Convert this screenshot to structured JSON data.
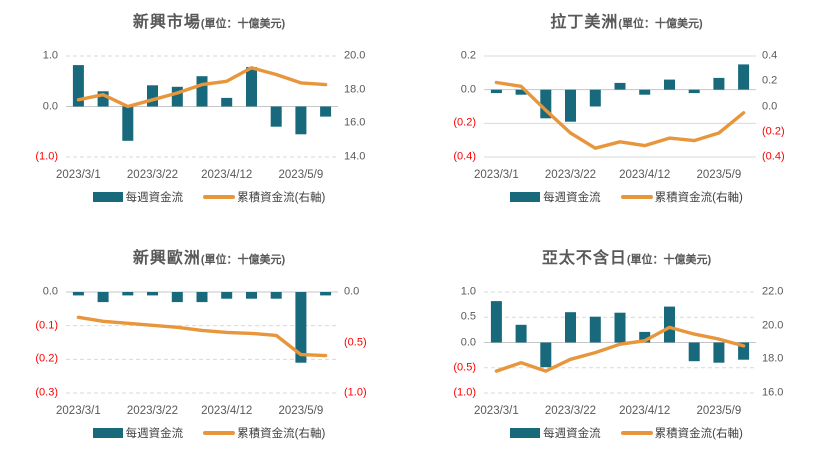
{
  "colors": {
    "bar": "#17697B",
    "line": "#E8963C",
    "grid": "#D9D9D9",
    "zero_line": "#C6C6C6",
    "axis_text": "#595959",
    "negative_text": "#FF0000",
    "title_text": "#595959"
  },
  "legend": {
    "bar_label": "每週資金流",
    "line_label": "累積資金流(右軸)"
  },
  "chart_data": [
    {
      "type": "combo-bar-line",
      "title": "新興市場",
      "unit": "(單位：十億美元)",
      "x_tick_labels": [
        "2023/3/1",
        "2023/3/22",
        "2023/4/12",
        "2023/5/9"
      ],
      "x_tick_positions": [
        0,
        3,
        6,
        9
      ],
      "grid_style": "dashed",
      "left_axis": {
        "max": 1.0,
        "min": -1.0,
        "tick_labels": [
          "1.0",
          "0.0",
          "(1.0)"
        ],
        "tick_values": [
          1.0,
          0.0,
          -1.0
        ]
      },
      "right_axis": {
        "max": 20.0,
        "min": 14.0,
        "tick_labels": [
          "20.0",
          "18.0",
          "16.0",
          "14.0"
        ]
      },
      "series": [
        {
          "name": "每週資金流",
          "type": "bar",
          "axis": "left",
          "values": [
            0.82,
            0.3,
            -0.68,
            0.42,
            0.39,
            0.6,
            0.17,
            0.78,
            -0.4,
            -0.55,
            -0.2
          ]
        },
        {
          "name": "累積資金流(右軸)",
          "type": "line",
          "axis": "right",
          "values": [
            17.4,
            17.7,
            17.0,
            17.4,
            17.8,
            18.3,
            18.5,
            19.3,
            18.9,
            18.4,
            18.3
          ]
        }
      ]
    },
    {
      "type": "combo-bar-line",
      "title": "拉丁美洲",
      "unit": "(單位：十億美元)",
      "x_tick_labels": [
        "2023/3/1",
        "2023/3/22",
        "2023/4/12",
        "2023/5/9"
      ],
      "x_tick_positions": [
        0,
        3,
        6,
        9
      ],
      "grid_style": "solid",
      "left_axis": {
        "max": 0.2,
        "min": -0.4,
        "tick_labels": [
          "0.2",
          "0.0",
          "(0.2)",
          "(0.4)"
        ],
        "tick_values": [
          0.2,
          0.0,
          -0.2,
          -0.4
        ]
      },
      "right_axis": {
        "max": 0.4,
        "min": -0.4,
        "tick_labels": [
          "0.4",
          "0.2",
          "0.0",
          "(0.2)",
          "(0.4)"
        ]
      },
      "series": [
        {
          "name": "每週資金流",
          "type": "bar",
          "axis": "left",
          "values": [
            -0.02,
            -0.03,
            -0.17,
            -0.19,
            -0.1,
            0.04,
            -0.03,
            0.06,
            -0.02,
            0.07,
            0.15
          ]
        },
        {
          "name": "累積資金流(右軸)",
          "type": "line",
          "axis": "right",
          "values": [
            0.19,
            0.16,
            -0.03,
            -0.21,
            -0.33,
            -0.28,
            -0.31,
            -0.25,
            -0.27,
            -0.21,
            -0.05
          ]
        }
      ]
    },
    {
      "type": "combo-bar-line",
      "title": "新興歐洲",
      "unit": "(單位：十億美元)",
      "x_tick_labels": [
        "2023/3/1",
        "2023/3/22",
        "2023/4/12",
        "2023/5/9"
      ],
      "x_tick_positions": [
        0,
        3,
        6,
        9
      ],
      "grid_style": "dashed",
      "left_axis": {
        "max": 0.0,
        "min": -0.3,
        "tick_labels": [
          "0.0",
          "(0.1)",
          "(0.2)",
          "(0.3)"
        ],
        "tick_values": [
          0.0,
          -0.1,
          -0.2,
          -0.3
        ]
      },
      "right_axis": {
        "max": 0.0,
        "min": -1.0,
        "tick_labels": [
          "0.0",
          "(0.5)",
          "(1.0)"
        ]
      },
      "series": [
        {
          "name": "每週資金流",
          "type": "bar",
          "axis": "left",
          "values": [
            -0.01,
            -0.03,
            -0.01,
            -0.01,
            -0.03,
            -0.03,
            -0.02,
            -0.02,
            -0.02,
            -0.21,
            -0.01
          ]
        },
        {
          "name": "累積資金流(右軸)",
          "type": "line",
          "axis": "right",
          "values": [
            -0.25,
            -0.29,
            -0.31,
            -0.33,
            -0.35,
            -0.38,
            -0.4,
            -0.41,
            -0.43,
            -0.62,
            -0.63
          ]
        }
      ]
    },
    {
      "type": "combo-bar-line",
      "title": "亞太不含日",
      "unit": "(單位：十億美元)",
      "x_tick_labels": [
        "2023/3/1",
        "2023/3/22",
        "2023/4/12",
        "2023/5/9"
      ],
      "x_tick_positions": [
        0,
        3,
        6,
        9
      ],
      "grid_style": "dashed",
      "left_axis": {
        "max": 1.0,
        "min": -1.0,
        "tick_labels": [
          "1.0",
          "0.5",
          "0.0",
          "(0.5)",
          "(1.0)"
        ],
        "tick_values": [
          1.0,
          0.5,
          0.0,
          -0.5,
          -1.0
        ]
      },
      "right_axis": {
        "max": 22.0,
        "min": 16.0,
        "tick_labels": [
          "22.0",
          "20.0",
          "18.0",
          "16.0"
        ]
      },
      "series": [
        {
          "name": "每週資金流",
          "type": "bar",
          "axis": "left",
          "values": [
            0.82,
            0.35,
            -0.49,
            0.6,
            0.51,
            0.59,
            0.21,
            0.71,
            -0.37,
            -0.4,
            -0.34
          ]
        },
        {
          "name": "累積資金流(右軸)",
          "type": "line",
          "axis": "right",
          "values": [
            17.3,
            17.8,
            17.3,
            18.0,
            18.4,
            18.9,
            19.1,
            19.9,
            19.5,
            19.2,
            18.8
          ]
        }
      ]
    }
  ]
}
